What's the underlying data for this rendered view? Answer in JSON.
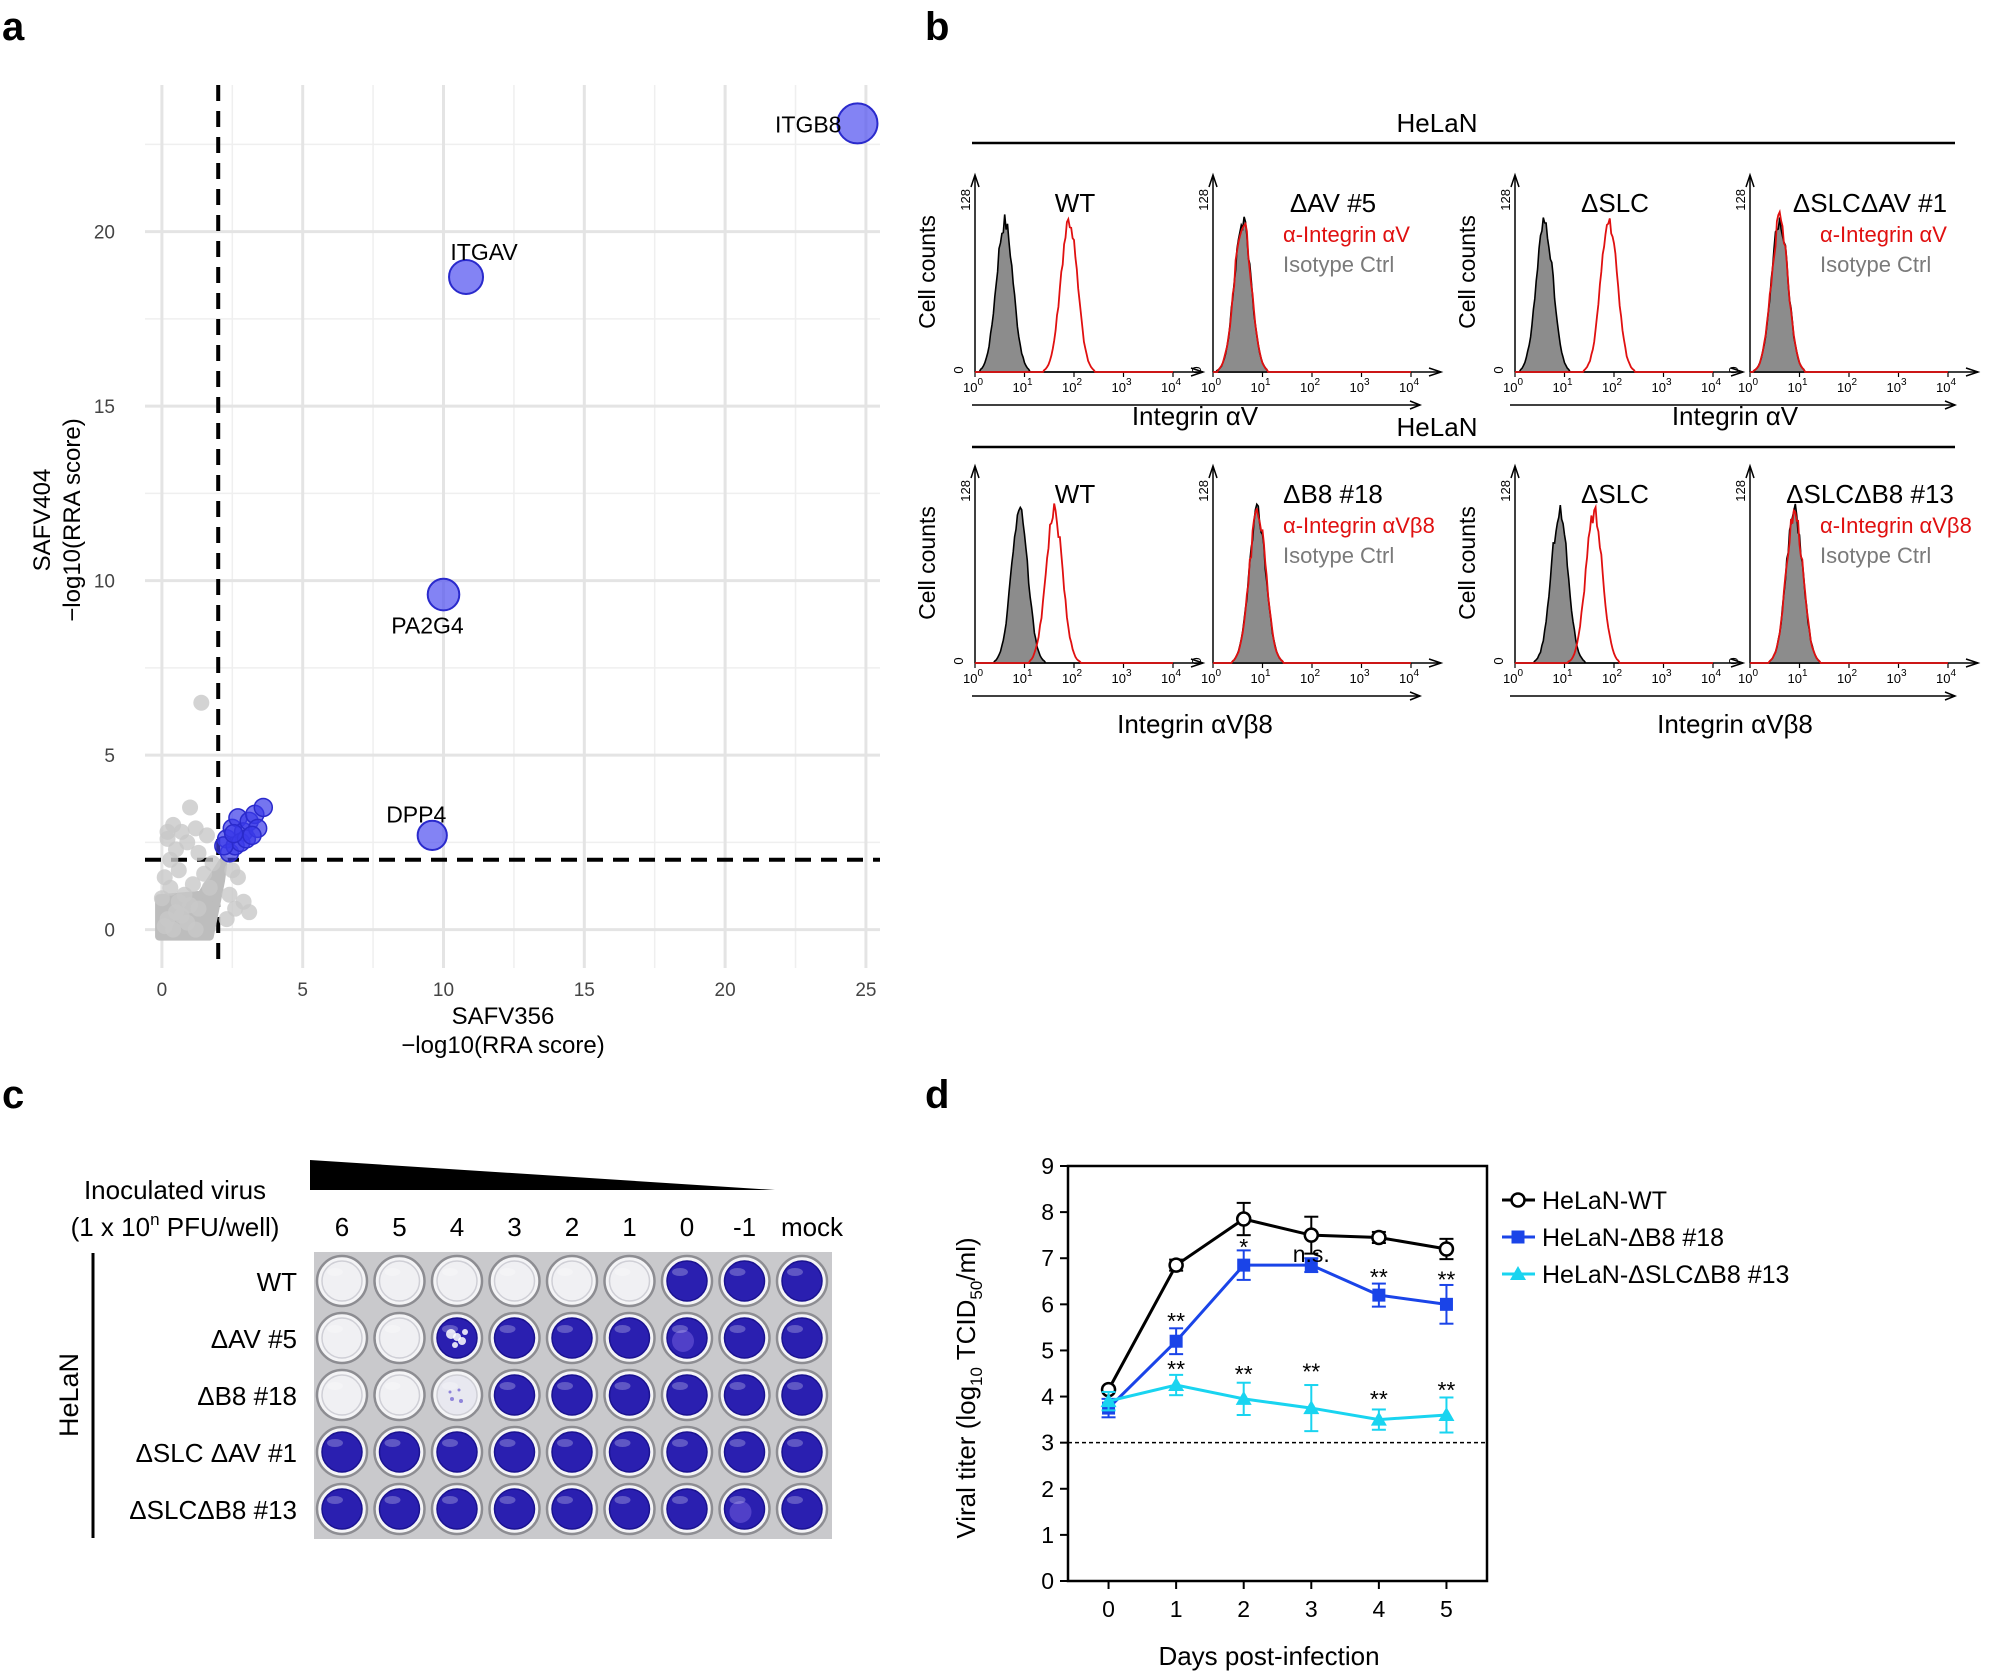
{
  "panel_labels": [
    "a",
    "b",
    "c",
    "d"
  ],
  "panel_a": {
    "chart_data": {
      "type": "scatter",
      "xlabel": [
        "SAFV356",
        "−log10(RRA score)"
      ],
      "ylabel": [
        "SAFV404",
        "−log10(RRA score)"
      ],
      "xlim": [
        -0.6,
        25.5
      ],
      "ylim": [
        -1.1,
        24.2
      ],
      "xticks": [
        0,
        5,
        10,
        15,
        20,
        25
      ],
      "yticks": [
        0,
        5,
        10,
        15,
        20
      ],
      "threshold_x": 2,
      "threshold_y": 2,
      "grid": true,
      "colors": {
        "hit": "#5050ee",
        "background": "#c8c8c8",
        "grid": "#e6e6e6"
      },
      "labeled_hits": [
        {
          "label": "ITGB8",
          "x": 24.7,
          "y": 23.1,
          "size": 2
        },
        {
          "label": "ITGAV",
          "x": 10.8,
          "y": 18.7,
          "size": 1.5
        },
        {
          "label": "PA2G4",
          "x": 10.0,
          "y": 9.6,
          "size": 1.3
        },
        {
          "label": "DPP4",
          "x": 9.6,
          "y": 2.7,
          "size": 1.1
        }
      ],
      "other_hits": [
        {
          "x": 2.3,
          "y": 2.6
        },
        {
          "x": 2.5,
          "y": 2.9
        },
        {
          "x": 2.7,
          "y": 3.2
        },
        {
          "x": 2.9,
          "y": 2.8
        },
        {
          "x": 3.1,
          "y": 3.1
        },
        {
          "x": 3.3,
          "y": 3.3
        },
        {
          "x": 3.6,
          "y": 3.5
        },
        {
          "x": 2.4,
          "y": 2.2
        },
        {
          "x": 2.6,
          "y": 2.4
        },
        {
          "x": 2.8,
          "y": 2.5
        },
        {
          "x": 3.0,
          "y": 2.6
        },
        {
          "x": 3.4,
          "y": 2.9
        },
        {
          "x": 2.2,
          "y": 2.4
        },
        {
          "x": 2.55,
          "y": 2.75
        },
        {
          "x": 3.2,
          "y": 2.7
        }
      ],
      "background_points": [
        {
          "x": 1.4,
          "y": 6.5
        },
        {
          "x": 1.0,
          "y": 3.5
        },
        {
          "x": 0.4,
          "y": 3.0
        },
        {
          "x": 0.7,
          "y": 2.8
        },
        {
          "x": 1.2,
          "y": 2.9
        },
        {
          "x": 0.2,
          "y": 2.6
        },
        {
          "x": 0.9,
          "y": 2.5
        },
        {
          "x": 1.6,
          "y": 2.7
        },
        {
          "x": 0.5,
          "y": 2.3
        },
        {
          "x": 1.3,
          "y": 2.2
        },
        {
          "x": 0.1,
          "y": 1.5
        },
        {
          "x": 0.3,
          "y": 1.2
        },
        {
          "x": 0.6,
          "y": 0.8
        },
        {
          "x": 0.8,
          "y": 1.0
        },
        {
          "x": 1.1,
          "y": 1.3
        },
        {
          "x": 1.5,
          "y": 1.6
        },
        {
          "x": 1.8,
          "y": 1.9
        },
        {
          "x": 0.2,
          "y": 0.3
        },
        {
          "x": 0.5,
          "y": 0.5
        },
        {
          "x": 0.9,
          "y": 0.2
        },
        {
          "x": 1.3,
          "y": 0.6
        },
        {
          "x": 0.1,
          "y": 0.1
        },
        {
          "x": 0.4,
          "y": 0.0
        },
        {
          "x": 0.7,
          "y": 0.4
        },
        {
          "x": 1.0,
          "y": 0.7
        },
        {
          "x": 1.7,
          "y": 1.2
        },
        {
          "x": 2.4,
          "y": 1.0
        },
        {
          "x": 2.6,
          "y": 0.6
        },
        {
          "x": 2.9,
          "y": 0.8
        },
        {
          "x": 2.3,
          "y": 0.3
        },
        {
          "x": 2.7,
          "y": 1.5
        },
        {
          "x": 3.1,
          "y": 0.5
        },
        {
          "x": 2.5,
          "y": 1.7
        },
        {
          "x": 0.0,
          "y": 0.9
        },
        {
          "x": 0.3,
          "y": 2.0
        },
        {
          "x": 1.2,
          "y": 0.0
        },
        {
          "x": 0.6,
          "y": 1.7
        },
        {
          "x": 0.2,
          "y": 2.8
        }
      ]
    }
  },
  "panel_b": {
    "rows": [
      {
        "group_label": "HeLaN",
        "xlabel_left": "Integrin αV",
        "xlabel_right": "Integrin αV",
        "plots": [
          {
            "title": "WT",
            "legend": [],
            "isotype_peak": 0.6,
            "stain_peak": 1.9,
            "stain_color": "#e01010"
          },
          {
            "title": "ΔAV #5",
            "legend": [
              "α-Integrin αV",
              "Isotype Ctrl"
            ],
            "isotype_peak": 0.6,
            "stain_peak": 0.6,
            "stain_color": "#e01010"
          },
          {
            "title": "ΔSLC",
            "legend": [],
            "isotype_peak": 0.6,
            "stain_peak": 1.9,
            "stain_color": "#e01010"
          },
          {
            "title": "ΔSLCΔAV #1",
            "legend": [
              "α-Integrin αV",
              "Isotype Ctrl"
            ],
            "isotype_peak": 0.6,
            "stain_peak": 0.6,
            "stain_color": "#e01010"
          }
        ]
      },
      {
        "group_label": "HeLaN",
        "xlabel_left": "Integrin αVβ8",
        "xlabel_right": "Integrin αVβ8",
        "plots": [
          {
            "title": "WT",
            "legend": [],
            "isotype_peak": 0.9,
            "stain_peak": 1.6,
            "stain_color": "#e01010"
          },
          {
            "title": "ΔB8 #18",
            "legend": [
              "α-Integrin αVβ8",
              "Isotype Ctrl"
            ],
            "isotype_peak": 0.9,
            "stain_peak": 0.9,
            "stain_color": "#e01010"
          },
          {
            "title": "ΔSLC",
            "legend": [],
            "isotype_peak": 0.9,
            "stain_peak": 1.6,
            "stain_color": "#e01010"
          },
          {
            "title": "ΔSLCΔB8 #13",
            "legend": [
              "α-Integrin αVβ8",
              "Isotype Ctrl"
            ],
            "isotype_peak": 0.9,
            "stain_peak": 0.9,
            "stain_color": "#e01010"
          }
        ]
      }
    ],
    "ylabel": "Cell counts",
    "ymax_label": "128",
    "ymin_label": "0",
    "xticks": [
      "0",
      "1",
      "2",
      "3",
      "4"
    ],
    "xtick_base": "10",
    "legend_colors": {
      "stain": "#e01010",
      "isotype": "#7a7a7a"
    }
  },
  "panel_c": {
    "header_line1": "Inoculated virus",
    "header_line2_pre": "(1 x 10",
    "header_line2_sup": "n",
    "header_line2_post": " PFU/well)",
    "columns": [
      "6",
      "5",
      "4",
      "3",
      "2",
      "1",
      "0",
      "-1",
      "mock"
    ],
    "group_label": "HeLaN",
    "rows": [
      {
        "label": "WT",
        "cells": [
          "clear",
          "clear",
          "clear",
          "clear",
          "clear",
          "clear",
          "stained",
          "stained",
          "stained"
        ]
      },
      {
        "label": "ΔAV #5",
        "cells": [
          "clear",
          "clear",
          "partial",
          "stained",
          "stained",
          "stained",
          "mottled",
          "stained",
          "stained"
        ]
      },
      {
        "label": "ΔB8 #18",
        "cells": [
          "clear",
          "clear",
          "faint",
          "stained",
          "stained",
          "stained",
          "stained",
          "stained",
          "stained"
        ]
      },
      {
        "label": "ΔSLC ΔAV #1",
        "cells": [
          "stained",
          "stained",
          "stained",
          "stained",
          "stained",
          "stained",
          "stained",
          "stained",
          "stained"
        ]
      },
      {
        "label": "ΔSLCΔB8 #13",
        "cells": [
          "stained",
          "stained",
          "stained",
          "stained",
          "stained",
          "stained",
          "stained",
          "mottled",
          "stained"
        ]
      }
    ],
    "colors": {
      "stained": "#2a1fb0",
      "clear": "#ececf0",
      "plate": "#c9c9cc"
    }
  },
  "panel_d": {
    "chart_data": {
      "type": "line",
      "xlabel": "Days post-infection",
      "ylabel_pre": "Viral titer (log",
      "ylabel_sub1": "10",
      "ylabel_mid": " TCID",
      "ylabel_sub2": "50",
      "ylabel_post": "/ml)",
      "x": [
        0,
        1,
        2,
        3,
        4,
        5
      ],
      "xlim": [
        -0.6,
        5.6
      ],
      "ylim": [
        0,
        9
      ],
      "yticks": [
        0,
        1,
        2,
        3,
        4,
        5,
        6,
        7,
        8,
        9
      ],
      "detection_limit": 3,
      "series": [
        {
          "name": "HeLaN-WT",
          "values": [
            4.15,
            6.85,
            7.85,
            7.5,
            7.45,
            7.2
          ],
          "errors": [
            0.05,
            0.12,
            0.35,
            0.4,
            0.12,
            0.22
          ],
          "color": "#000000",
          "marker": "circle-open"
        },
        {
          "name": "HeLaN-ΔB8 #18",
          "values": [
            3.75,
            5.2,
            6.85,
            6.85,
            6.2,
            6.0
          ],
          "errors": [
            0.2,
            0.28,
            0.32,
            0.15,
            0.25,
            0.42
          ],
          "color": "#1a44e8",
          "marker": "square"
        },
        {
          "name": "HeLaN-ΔSLCΔB8 #13",
          "values": [
            3.9,
            4.25,
            3.95,
            3.75,
            3.5,
            3.6
          ],
          "errors": [
            0.2,
            0.22,
            0.35,
            0.5,
            0.22,
            0.38
          ],
          "color": "#19d4f0",
          "marker": "triangle"
        }
      ],
      "annotations": [
        {
          "x": 1,
          "y": 5.6,
          "text": "**"
        },
        {
          "x": 2,
          "y": 7.2,
          "text": "*"
        },
        {
          "x": 3,
          "y": 7.05,
          "text": "n.s."
        },
        {
          "x": 4,
          "y": 6.55,
          "text": "**"
        },
        {
          "x": 5,
          "y": 6.5,
          "text": "**"
        },
        {
          "x": 1,
          "y": 4.55,
          "text": "**"
        },
        {
          "x": 2,
          "y": 4.45,
          "text": "**"
        },
        {
          "x": 3,
          "y": 4.5,
          "text": "**"
        },
        {
          "x": 4,
          "y": 3.9,
          "text": "**"
        },
        {
          "x": 5,
          "y": 4.1,
          "text": "**"
        }
      ]
    }
  }
}
